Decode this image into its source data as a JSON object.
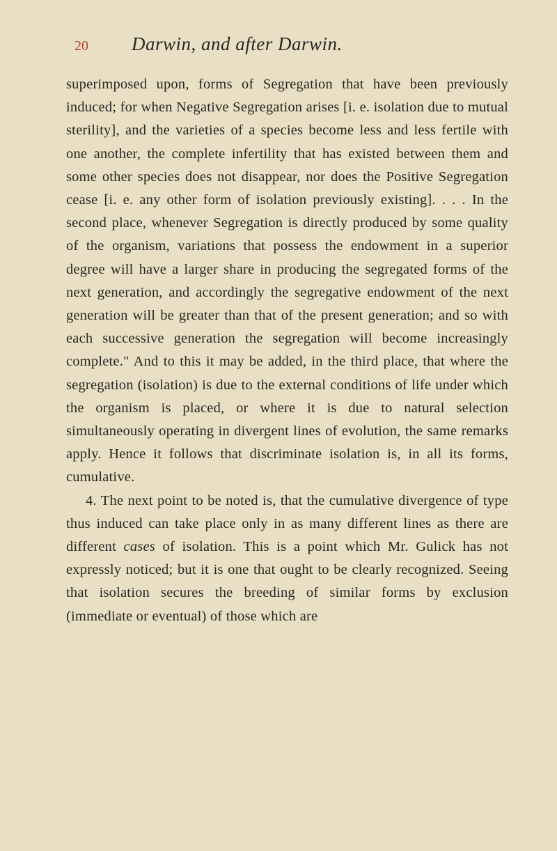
{
  "page": {
    "number": "20",
    "running_title": "Darwin, and after Darwin.",
    "background_color": "#e8dfc5",
    "text_color": "#2a2620",
    "page_number_color": "#b8452a",
    "font_family": "Georgia, serif",
    "body_font_size": 20.5,
    "title_font_size": 27,
    "line_height": 1.62
  },
  "paragraphs": {
    "p1": "superimposed upon, forms of Segregation that have been previously induced; for when Negative Segre­gation arises [i. e. isolation due to mutual sterility], and the varieties of a species become less and less fertile with one another, the complete infertility that has existed between them and some other species does not disappear, nor does the Positive Segregation cease [i. e. any other form of isolation previously existing]. . . . In the second place, whenever Segregation is directly produced by some quality of the organism, variations that possess the endowment in a superior degree will have a larger share in pro­ducing the segregated forms of the next generation, and accordingly the segregative endowment of the next generation will be greater than that of the present generation; and so with each successive generation the segregation will become increasingly complete.\" And to this it may be added, in the third place, that where the segregation (isolation) is due to the external conditions of life under which the organism is placed, or where it is due to natural selection simultaneously operating in divergent lines of evolution, the same remarks apply. Hence it follows that discriminate isolation is, in all its forms, cumulative.",
    "p2_part1": "4. The next point to be noted is, that the cumu­lative divergence of type thus induced can take place only in as many different lines as there are different ",
    "p2_italic": "cases",
    "p2_part2": " of isolation. This is a point which Mr. Gulick has not expressly noticed; but it is one that ought to be clearly recognized. Seeing that isolation secures the breeding of similar forms by exclusion (immediate or eventual) of those which are"
  }
}
